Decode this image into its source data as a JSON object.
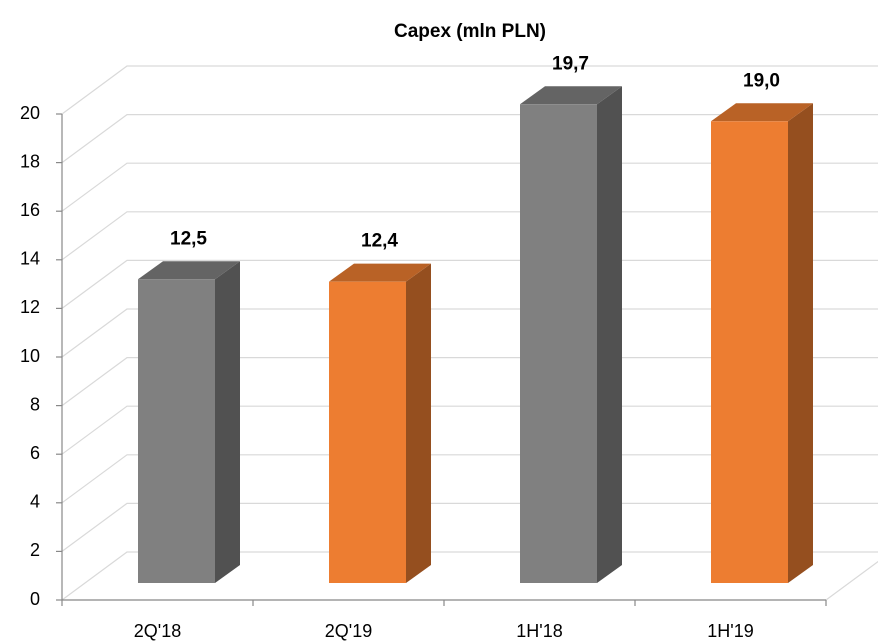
{
  "chart_data": {
    "type": "bar3d",
    "title": "Capex  (mln PLN)",
    "categories": [
      "2Q'18",
      "2Q'19",
      "1H'18",
      "1H'19"
    ],
    "values": [
      12.5,
      12.4,
      19.7,
      19.0
    ],
    "value_labels": [
      "12,5",
      "12,4",
      "19,7",
      "19,0"
    ],
    "colors": [
      "#808080",
      "#ed7d31",
      "#808080",
      "#ed7d31"
    ],
    "ylim": [
      0,
      20
    ],
    "yticks": [
      0,
      2,
      4,
      6,
      8,
      10,
      12,
      14,
      16,
      18,
      20
    ],
    "grid": true
  }
}
